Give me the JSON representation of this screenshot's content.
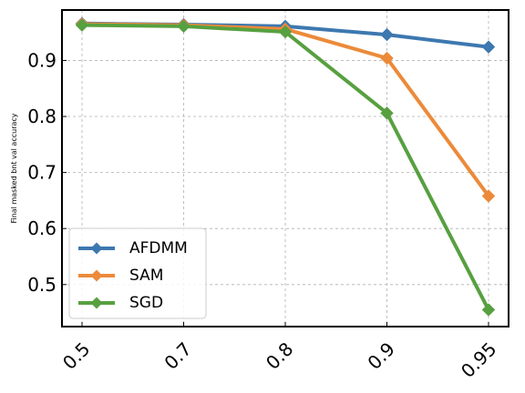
{
  "chart_data": {
    "type": "line",
    "title": "",
    "xlabel": "",
    "ylabel": "Final masked bnt val accuracy",
    "categories": [
      "0.5",
      "0.7",
      "0.8",
      "0.9",
      "0.95"
    ],
    "yticks": [
      "0.5",
      "0.6",
      "0.7",
      "0.8",
      "0.9"
    ],
    "ytick_values": [
      0.5,
      0.6,
      0.7,
      0.8,
      0.9
    ],
    "ylim": [
      0.425,
      0.99
    ],
    "grid": true,
    "legend_position": "lower-left",
    "series": [
      {
        "name": "AFDMM",
        "color": "#3d78b0",
        "values": [
          0.966,
          0.964,
          0.961,
          0.946,
          0.924
        ]
      },
      {
        "name": "SAM",
        "color": "#ec8a3a",
        "values": [
          0.965,
          0.963,
          0.956,
          0.904,
          0.658
        ]
      },
      {
        "name": "SGD",
        "color": "#57a040",
        "values": [
          0.963,
          0.961,
          0.951,
          0.806,
          0.455
        ]
      }
    ]
  }
}
